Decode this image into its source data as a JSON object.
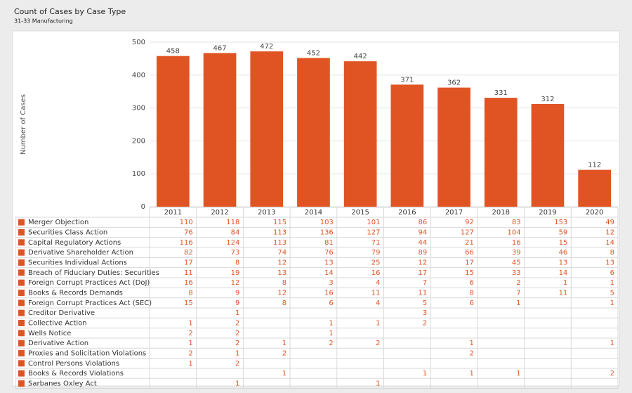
{
  "chart_data": {
    "type": "bar",
    "title": "Count of Cases by Case Type",
    "subtitle": "31-33 Manufacturing",
    "y_label": "Number of Cases",
    "categories": [
      "2011",
      "2012",
      "2013",
      "2014",
      "2015",
      "2016",
      "2017",
      "2018",
      "2019",
      "2020"
    ],
    "values": [
      458,
      467,
      472,
      452,
      442,
      371,
      362,
      331,
      312,
      112
    ],
    "color": "#e05424",
    "ylim": [
      0,
      500
    ],
    "yticks": [
      0,
      100,
      200,
      300,
      400,
      500
    ],
    "grid": true,
    "series": [
      {
        "name": "Merger Objection",
        "color": "#e05424",
        "values": [
          110,
          118,
          115,
          103,
          101,
          86,
          92,
          83,
          153,
          49
        ]
      },
      {
        "name": "Securities Class Action",
        "color": "#e05424",
        "values": [
          76,
          84,
          113,
          136,
          127,
          94,
          127,
          104,
          59,
          12
        ]
      },
      {
        "name": "Capital Regulatory Actions",
        "color": "#e05424",
        "values": [
          116,
          124,
          113,
          81,
          71,
          44,
          21,
          16,
          15,
          14
        ]
      },
      {
        "name": "Derivative Shareholder Action",
        "color": "#e05424",
        "values": [
          82,
          73,
          74,
          76,
          79,
          89,
          66,
          39,
          46,
          8
        ]
      },
      {
        "name": "Securities Individual Actions",
        "color": "#e05424",
        "values": [
          17,
          8,
          12,
          13,
          25,
          12,
          17,
          45,
          13,
          13
        ]
      },
      {
        "name": "Breach of Fiduciary Duties: Securities",
        "color": "#e05424",
        "values": [
          11,
          19,
          13,
          14,
          16,
          17,
          15,
          33,
          14,
          6
        ]
      },
      {
        "name": "Foreign Corrupt Practices Act (DoJ)",
        "color": "#e05424",
        "values": [
          16,
          12,
          8,
          3,
          4,
          7,
          6,
          2,
          1,
          1
        ]
      },
      {
        "name": "Books & Records Demands",
        "color": "#e05424",
        "values": [
          8,
          9,
          12,
          16,
          11,
          11,
          8,
          7,
          11,
          5
        ]
      },
      {
        "name": "Foreign Corrupt Practices Act (SEC)",
        "color": "#e05424",
        "values": [
          15,
          9,
          8,
          6,
          4,
          5,
          6,
          1,
          null,
          1
        ]
      },
      {
        "name": "Creditor Derivative",
        "color": "#e05424",
        "values": [
          null,
          1,
          null,
          null,
          null,
          3,
          null,
          null,
          null,
          null
        ]
      },
      {
        "name": "Collective Action",
        "color": "#e05424",
        "values": [
          1,
          2,
          null,
          1,
          1,
          2,
          null,
          null,
          null,
          null
        ]
      },
      {
        "name": "Wells Notice",
        "color": "#e05424",
        "values": [
          2,
          2,
          null,
          1,
          null,
          null,
          null,
          null,
          null,
          null
        ]
      },
      {
        "name": "Derivative Action",
        "color": "#e05424",
        "values": [
          1,
          2,
          1,
          2,
          2,
          null,
          1,
          null,
          null,
          1
        ]
      },
      {
        "name": "Proxies and Solicitation Violations",
        "color": "#e05424",
        "values": [
          2,
          1,
          2,
          null,
          null,
          null,
          2,
          null,
          null,
          null
        ]
      },
      {
        "name": "Control Persons Violations",
        "color": "#e05424",
        "values": [
          1,
          2,
          null,
          null,
          null,
          null,
          null,
          null,
          null,
          null
        ]
      },
      {
        "name": "Books & Records Violations",
        "color": "#e05424",
        "values": [
          null,
          null,
          1,
          null,
          null,
          1,
          1,
          1,
          null,
          2
        ]
      },
      {
        "name": "Sarbanes Oxley Act",
        "color": "#e05424",
        "values": [
          null,
          1,
          null,
          null,
          1,
          null,
          null,
          null,
          null,
          null
        ]
      }
    ]
  }
}
